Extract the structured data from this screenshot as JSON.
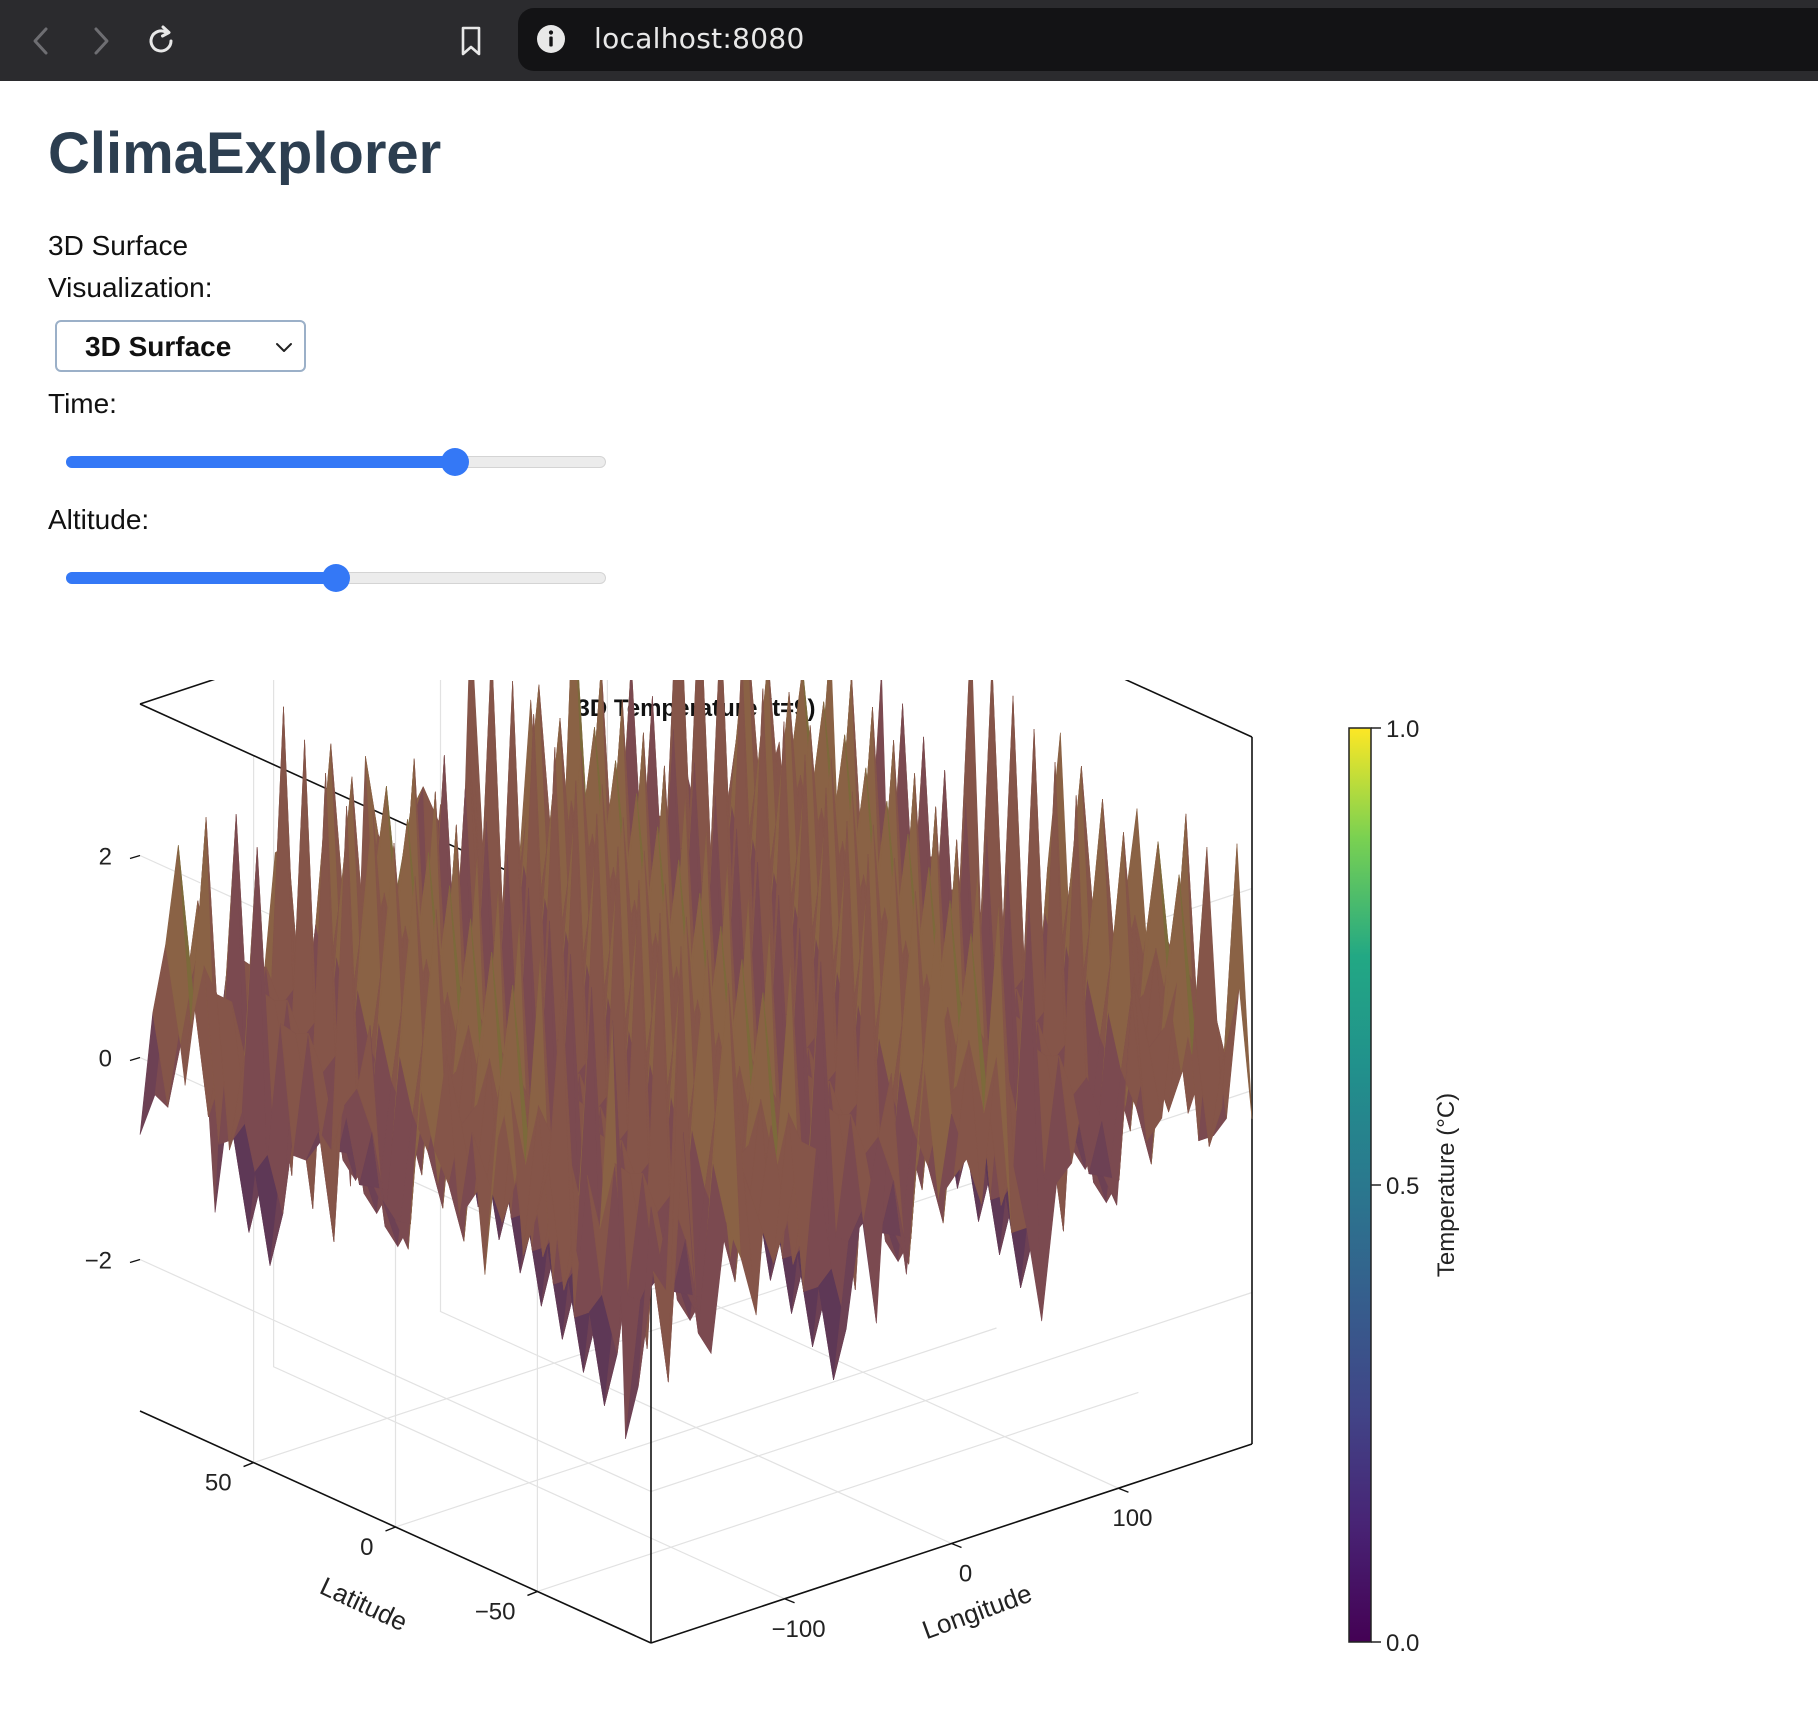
{
  "browser": {
    "url": "localhost:8080",
    "icons": [
      "back-icon",
      "forward-icon",
      "reload-icon",
      "bookmark-icon",
      "info-icon"
    ]
  },
  "app": {
    "title": "ClimaExplorer",
    "subtitle": "3D Surface",
    "visualization_label": "Visualization:",
    "visualization_value": "3D Surface",
    "time_label": "Time:",
    "time_value": 0.72,
    "altitude_label": "Altitude:",
    "altitude_value": 0.5
  },
  "colors": {
    "accent": "#3478f6",
    "title": "#2c3e50",
    "chrome": "#2b2b2e"
  },
  "chart_data": {
    "type": "surface3d",
    "title": "3D Temperature (t=9)",
    "xlabel": "Latitude",
    "ylabel": "Longitude",
    "zlabel": "",
    "colorbar_label": "Temperature (°C)",
    "colormap": "viridis",
    "xlim": [
      -90,
      90
    ],
    "ylim": [
      -180,
      180
    ],
    "zlim": [
      -3.5,
      3.5
    ],
    "x_ticks": [
      50,
      0,
      -50
    ],
    "y_ticks": [
      -100,
      0,
      100
    ],
    "z_ticks": [
      2,
      0,
      -2
    ],
    "x_tick_labels": [
      "50",
      "0",
      "−50"
    ],
    "y_tick_labels": [
      "−100",
      "0",
      "100"
    ],
    "z_tick_labels": [
      "2",
      "0",
      "−2"
    ],
    "colorbar_ticks": [
      "1.0",
      "0.5",
      "0.0"
    ],
    "colorbar_range": [
      0,
      1
    ],
    "grid": true
  }
}
